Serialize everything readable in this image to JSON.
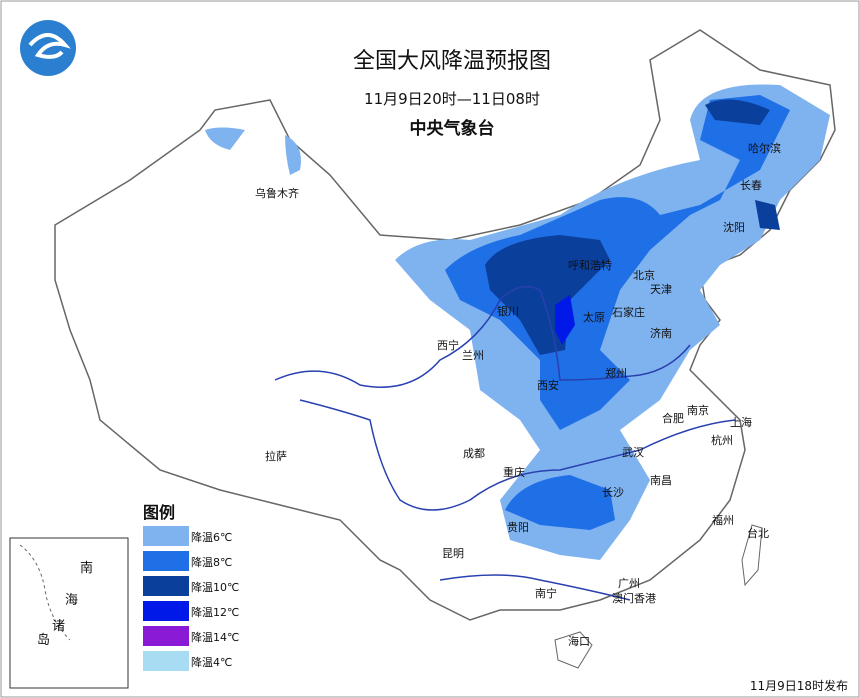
{
  "header": {
    "title": "全国大风降温预报图",
    "period": "11月9日20时—11日08时",
    "agency": "中央气象台"
  },
  "legend": {
    "title": "图例",
    "items": [
      {
        "label": "降温6℃",
        "color": "#7fb3f0"
      },
      {
        "label": "降温8℃",
        "color": "#1f6fe6"
      },
      {
        "label": "降温10℃",
        "color": "#0b3f9c"
      },
      {
        "label": "降温12℃",
        "color": "#0018e8"
      },
      {
        "label": "降温14℃",
        "color": "#8a1ad6"
      },
      {
        "label": "降温4℃",
        "color": "#a8dcf2"
      }
    ]
  },
  "cities": [
    "乌鲁木齐",
    "西宁",
    "兰州",
    "拉萨",
    "成都",
    "重庆",
    "贵阳",
    "昆明",
    "南宁",
    "广州",
    "澳门香港",
    "海口",
    "台北",
    "长沙",
    "南昌",
    "武汉",
    "合肥",
    "南京",
    "上海",
    "杭州",
    "福州",
    "西安",
    "郑州",
    "济南",
    "石家庄",
    "太原",
    "银川",
    "呼和浩特",
    "北京",
    "天津",
    "沈阳",
    "长春",
    "哈尔滨"
  ],
  "inset": {
    "labels": [
      "南",
      "海",
      "诸",
      "岛"
    ]
  },
  "footer": "11月9日18时发布"
}
